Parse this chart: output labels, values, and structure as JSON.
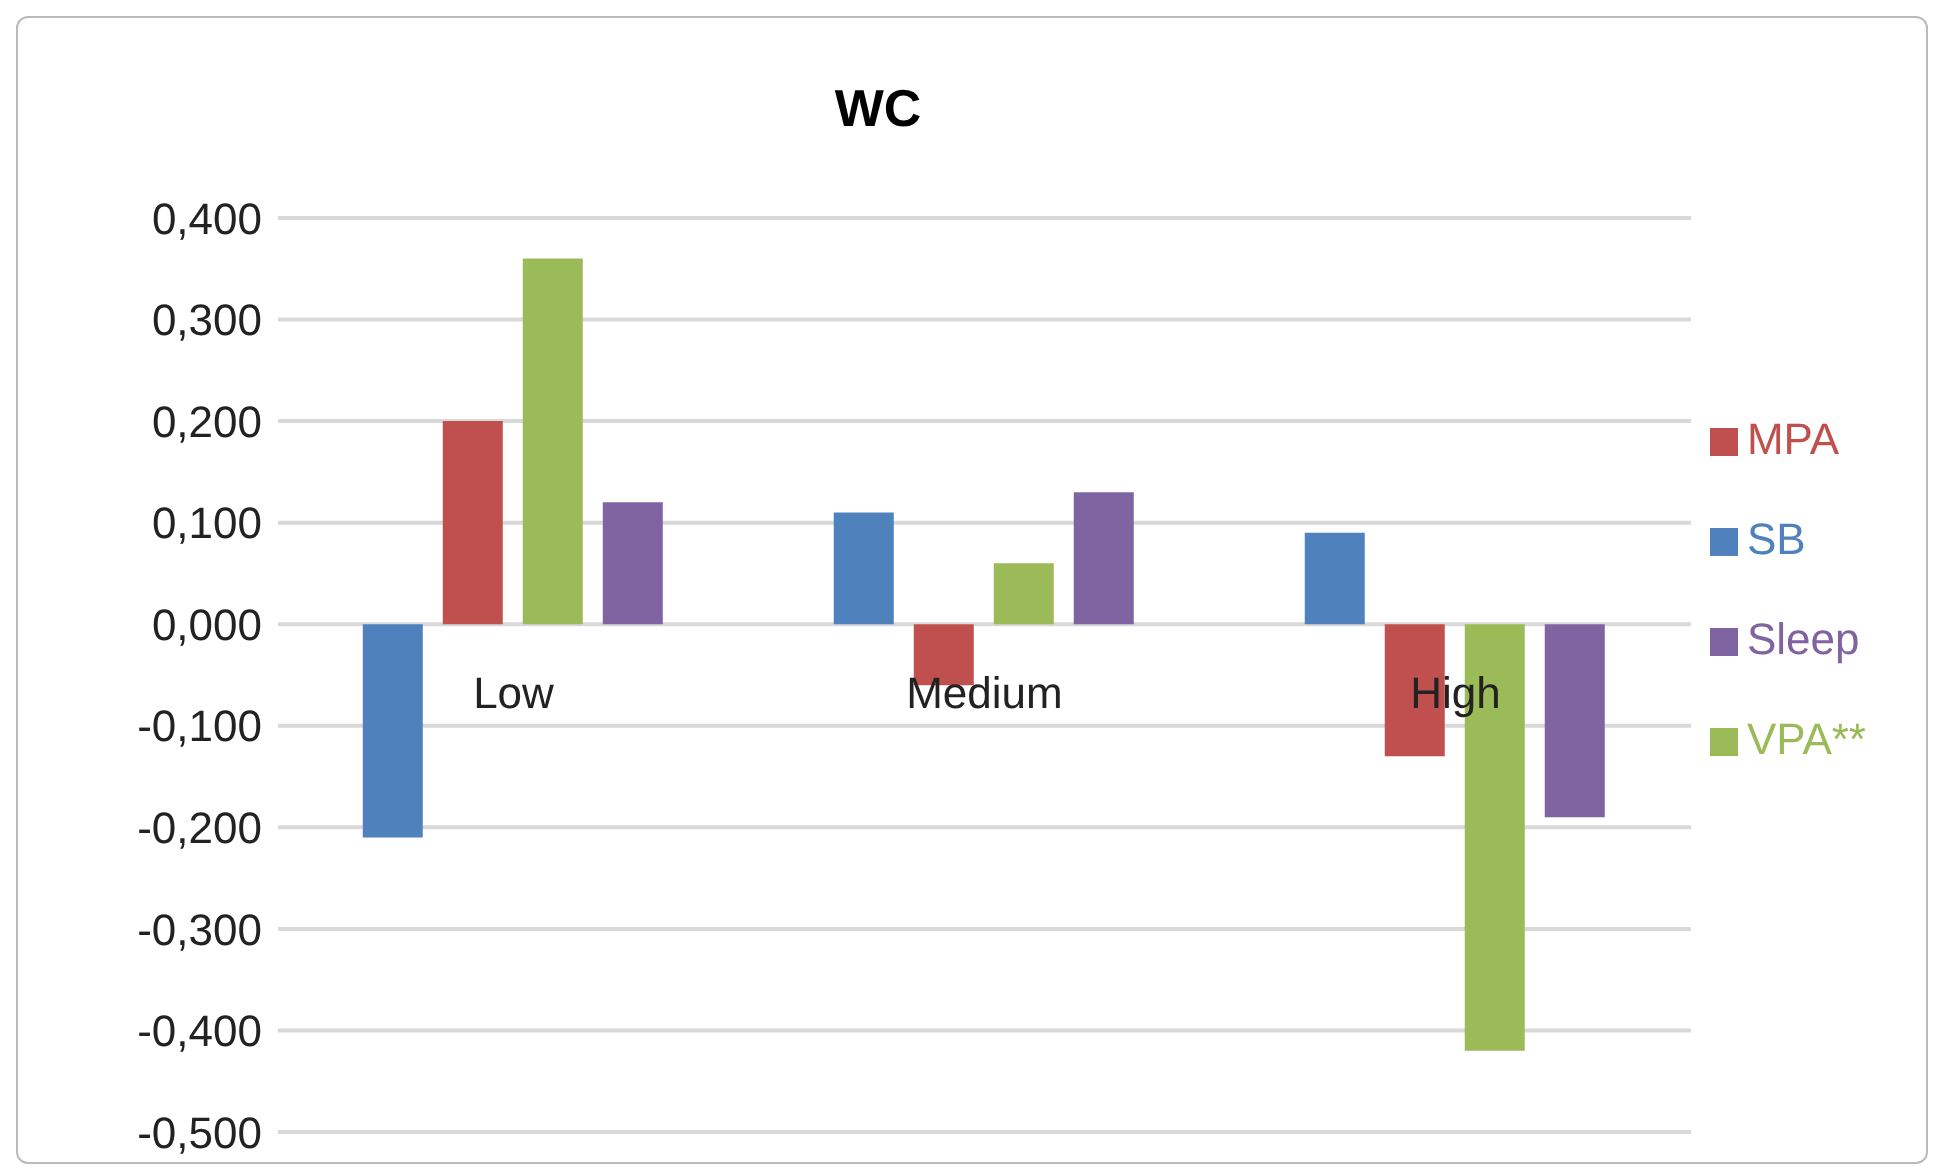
{
  "chart_data": {
    "type": "bar",
    "title": "WC",
    "categories": [
      "Low",
      "Medium",
      "High"
    ],
    "series": [
      {
        "name": "SB",
        "color": "#4f81bd",
        "values": [
          -0.21,
          0.11,
          0.09
        ]
      },
      {
        "name": "MPA",
        "color": "#c0504d",
        "values": [
          0.2,
          -0.06,
          -0.13
        ]
      },
      {
        "name": "VPA**",
        "color": "#9bbb59",
        "values": [
          0.36,
          0.06,
          -0.42
        ]
      },
      {
        "name": "Sleep",
        "color": "#8064a2",
        "values": [
          0.12,
          0.13,
          -0.19
        ]
      }
    ],
    "ylim": [
      -0.5,
      0.4
    ],
    "yticks": [
      {
        "value": -0.5,
        "label": "-0,500"
      },
      {
        "value": -0.4,
        "label": "-0,400"
      },
      {
        "value": -0.3,
        "label": "-0,300"
      },
      {
        "value": -0.2,
        "label": "-0,200"
      },
      {
        "value": -0.1,
        "label": "-0,100"
      },
      {
        "value": 0,
        "label": "0,000"
      },
      {
        "value": 0.1,
        "label": "0,100"
      },
      {
        "value": 0.2,
        "label": "0,200"
      },
      {
        "value": 0.3,
        "label": "0,300"
      },
      {
        "value": 0.4,
        "label": "0,400"
      }
    ],
    "grid": "y",
    "legend": "right"
  }
}
